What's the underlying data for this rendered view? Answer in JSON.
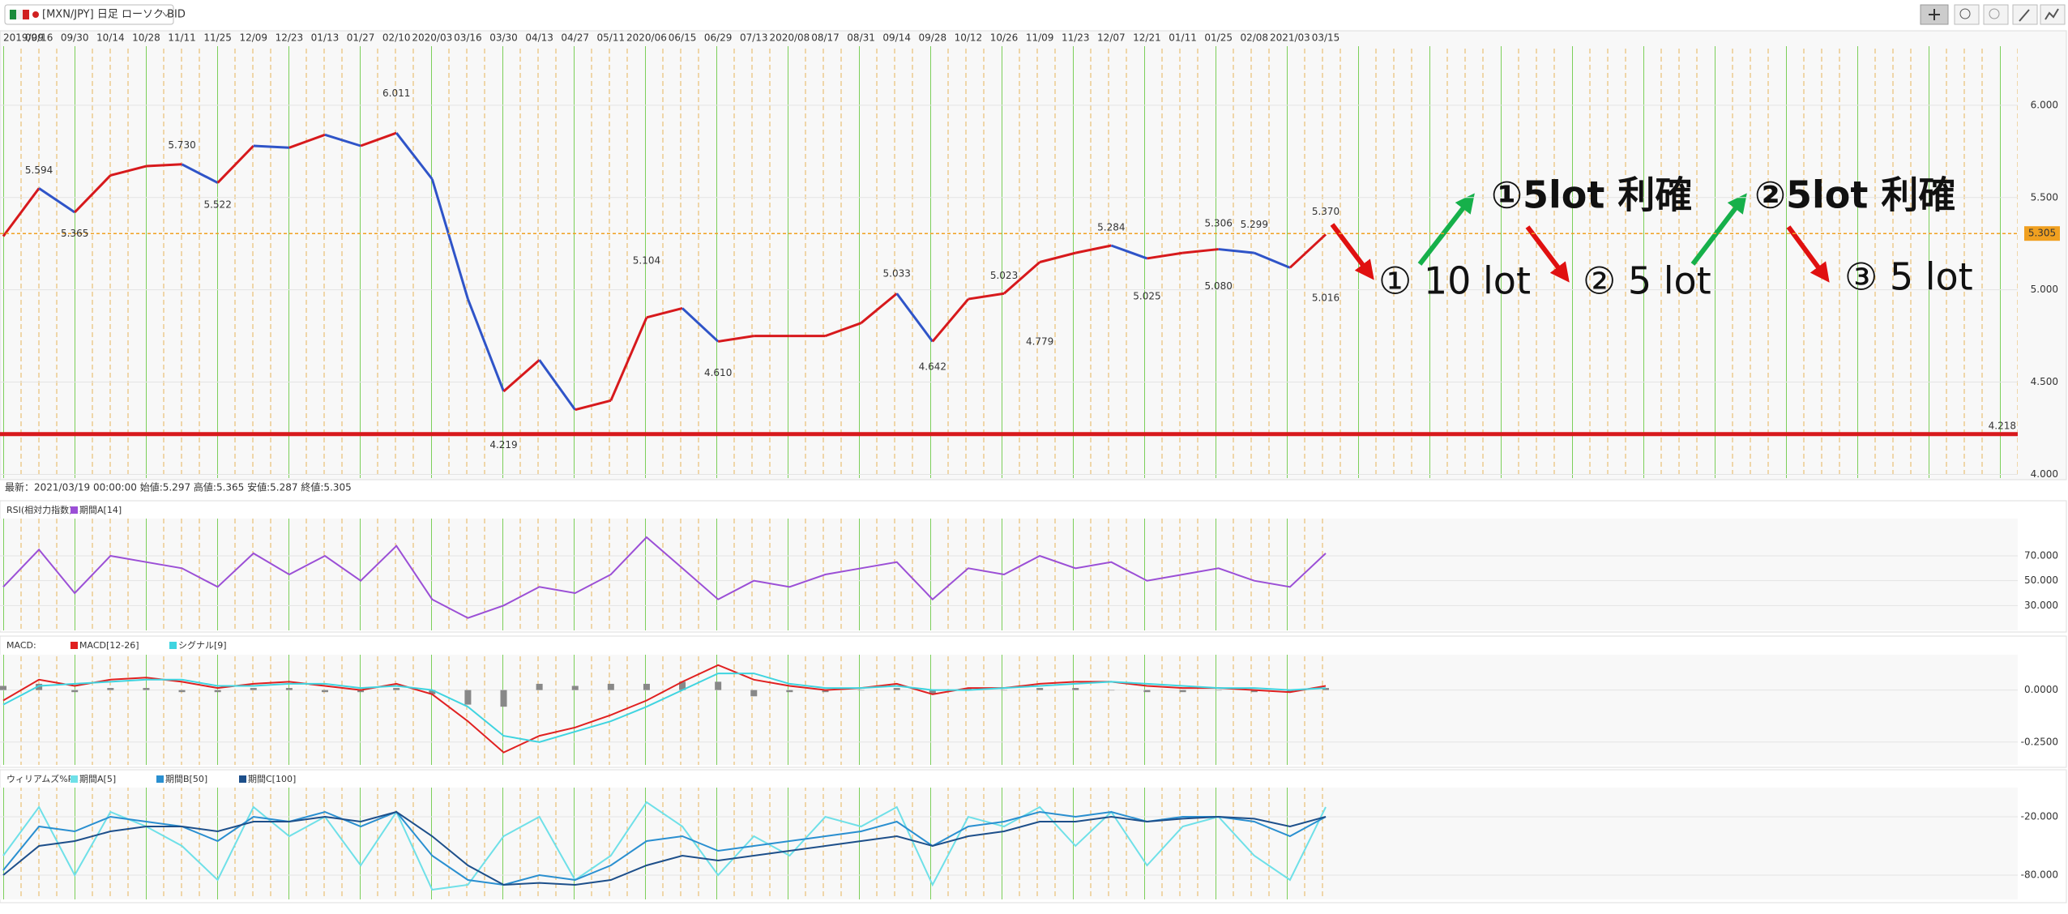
{
  "info": "最新：2021/03/19 00:00:00 始値:5.297 高値:5.365 安値:5.287 終値:5.305",
  "chart_data": [
    {
      "type": "line",
      "title": "[MXN/JPY] 日足 ローソク BID",
      "categories": [
        "2019/09",
        "09/16",
        "09/30",
        "10/14",
        "10/28",
        "11/11",
        "11/25",
        "12/09",
        "12/23",
        "01/13",
        "01/27",
        "02/10",
        "2020/03",
        "03/16",
        "03/30",
        "04/13",
        "04/27",
        "05/11",
        "2020/06",
        "06/15",
        "06/29",
        "07/13",
        "2020/08",
        "08/17",
        "08/31",
        "09/14",
        "09/28",
        "10/12",
        "10/26",
        "11/09",
        "11/23",
        "12/07",
        "12/21",
        "01/11",
        "01/25",
        "02/08",
        "2021/03",
        "03/15"
      ],
      "series": [
        {
          "color": "#2f54c8",
          "up_color": "#d7191c",
          "values": [
            5.29,
            5.55,
            5.42,
            5.62,
            5.67,
            5.68,
            5.58,
            5.78,
            5.77,
            5.84,
            5.78,
            5.85,
            5.6,
            4.95,
            4.45,
            4.62,
            4.35,
            4.4,
            4.85,
            4.9,
            4.72,
            4.75,
            4.75,
            4.75,
            4.82,
            4.98,
            4.72,
            4.95,
            4.98,
            5.15,
            5.2,
            5.24,
            5.17,
            5.2,
            5.22,
            5.2,
            5.12,
            5.3
          ]
        }
      ],
      "ylim": [
        3.98,
        6.32
      ],
      "yticks": [
        {
          "value": 4,
          "label": "4.000"
        },
        {
          "value": 4.5,
          "label": "4.500"
        },
        {
          "value": 5,
          "label": "5.000"
        },
        {
          "value": 5.5,
          "label": "5.500"
        },
        {
          "value": 6,
          "label": "6.000"
        }
      ],
      "extremes": [
        {
          "x": "09/16",
          "kind": "high",
          "value": 5.594,
          "label": "5.594"
        },
        {
          "x": "09/30",
          "kind": "low",
          "value": 5.365,
          "label": "5.365"
        },
        {
          "x": "11/11",
          "kind": "high",
          "value": 5.73,
          "label": "5.730"
        },
        {
          "x": "11/25",
          "kind": "low",
          "value": 5.522,
          "label": "5.522"
        },
        {
          "x": "02/10",
          "kind": "high",
          "value": 6.011,
          "label": "6.011"
        },
        {
          "x": "03/30",
          "kind": "low",
          "value": 4.219,
          "label": "4.219"
        },
        {
          "x": "2020/06",
          "kind": "high",
          "value": 5.104,
          "label": "5.104"
        },
        {
          "x": "06/29",
          "kind": "low",
          "value": 4.61,
          "label": "4.610"
        },
        {
          "x": "09/14",
          "kind": "high",
          "value": 5.033,
          "label": "5.033"
        },
        {
          "x": "09/28",
          "kind": "low",
          "value": 4.642,
          "label": "4.642"
        },
        {
          "x": "10/26",
          "kind": "high",
          "value": 5.023,
          "label": "5.023"
        },
        {
          "x": "11/09",
          "kind": "low",
          "value": 4.779,
          "label": "4.779"
        },
        {
          "x": "12/07",
          "kind": "high",
          "value": 5.284,
          "label": "5.284"
        },
        {
          "x": "12/21",
          "kind": "low",
          "value": 5.025,
          "label": "5.025"
        },
        {
          "x": "01/25",
          "kind": "high",
          "value": 5.306,
          "label": "5.306"
        },
        {
          "x": "01/25",
          "kind": "low",
          "value": 5.08,
          "label": "5.080"
        },
        {
          "x": "02/08",
          "kind": "high",
          "value": 5.299,
          "label": "5.299"
        },
        {
          "x": "03/15",
          "kind": "low",
          "value": 5.016,
          "label": "5.016"
        },
        {
          "x": "03/15",
          "kind": "high",
          "value": 5.37,
          "label": "5.370"
        }
      ],
      "hline": {
        "value": 4.218,
        "label": "4.218",
        "color": "#d7191c"
      },
      "current": {
        "value": 5.305,
        "label": "5.305",
        "color": "#f0a020"
      },
      "notes": [
        "①5lot 利確",
        "②5lot 利確",
        "① 10 lot",
        "② 5 lot",
        "③ 5 lot"
      ]
    },
    {
      "type": "line",
      "title": "RSI(相対力指数):",
      "series": [
        {
          "name": "期間A[14]",
          "color": "#9b4fd6",
          "values": [
            45,
            75,
            40,
            70,
            65,
            60,
            45,
            72,
            55,
            70,
            50,
            78,
            35,
            20,
            30,
            45,
            40,
            55,
            85,
            60,
            35,
            50,
            45,
            55,
            60,
            65,
            35,
            60,
            55,
            70,
            60,
            65,
            50,
            55,
            60,
            50,
            45,
            72
          ]
        }
      ],
      "ylim": [
        10,
        100
      ],
      "yticks": [
        {
          "value": 30,
          "label": "30.000"
        },
        {
          "value": 50,
          "label": "50.000"
        },
        {
          "value": 70,
          "label": "70.000"
        }
      ]
    },
    {
      "type": "line",
      "title": "MACD:",
      "series": [
        {
          "name": "MACD[12-26]",
          "color": "#e02020",
          "values": [
            -0.05,
            0.05,
            0.02,
            0.05,
            0.06,
            0.04,
            0.01,
            0.03,
            0.04,
            0.02,
            0.0,
            0.03,
            -0.02,
            -0.15,
            -0.3,
            -0.22,
            -0.18,
            -0.12,
            -0.05,
            0.04,
            0.12,
            0.05,
            0.02,
            0.0,
            0.01,
            0.03,
            -0.02,
            0.01,
            0.01,
            0.03,
            0.04,
            0.04,
            0.02,
            0.01,
            0.01,
            0.0,
            -0.01,
            0.02
          ]
        },
        {
          "name": "シグナル[9]",
          "color": "#3fd4e0",
          "values": [
            -0.07,
            0.02,
            0.03,
            0.04,
            0.05,
            0.05,
            0.02,
            0.02,
            0.03,
            0.03,
            0.01,
            0.02,
            0.0,
            -0.08,
            -0.22,
            -0.25,
            -0.2,
            -0.15,
            -0.08,
            0.0,
            0.08,
            0.08,
            0.03,
            0.01,
            0.01,
            0.02,
            0.0,
            0.0,
            0.01,
            0.02,
            0.03,
            0.04,
            0.03,
            0.02,
            0.01,
            0.01,
            0.0,
            0.01
          ]
        }
      ],
      "histogram": {
        "color": "#888888",
        "values": [
          0.02,
          0.03,
          -0.01,
          0.01,
          0.01,
          -0.01,
          -0.01,
          0.01,
          0.01,
          -0.01,
          -0.01,
          0.01,
          -0.02,
          -0.07,
          -0.08,
          0.03,
          0.02,
          0.03,
          0.03,
          0.04,
          0.04,
          -0.03,
          -0.01,
          -0.01,
          0.0,
          0.01,
          -0.02,
          0.01,
          0.0,
          0.01,
          0.01,
          0.0,
          -0.01,
          -0.01,
          0.0,
          -0.01,
          -0.01,
          0.01
        ]
      },
      "ylim": [
        -0.36,
        0.17
      ],
      "yticks": [
        {
          "value": -0.25,
          "label": "-0.2500"
        },
        {
          "value": 0,
          "label": "0.0000"
        }
      ]
    },
    {
      "type": "line",
      "title": "ウィリアムズ%R:",
      "series": [
        {
          "name": "期間A[5]",
          "color": "#6fe0e8",
          "values": [
            -60,
            -10,
            -80,
            -15,
            -30,
            -50,
            -85,
            -10,
            -40,
            -20,
            -70,
            -15,
            -95,
            -90,
            -40,
            -20,
            -85,
            -60,
            -5,
            -30,
            -80,
            -40,
            -60,
            -20,
            -30,
            -10,
            -90,
            -20,
            -30,
            -10,
            -50,
            -15,
            -70,
            -30,
            -20,
            -60,
            -85,
            -10
          ]
        },
        {
          "name": "期間B[50]",
          "color": "#2a8fd0",
          "values": [
            -75,
            -30,
            -35,
            -20,
            -25,
            -30,
            -45,
            -20,
            -25,
            -15,
            -30,
            -15,
            -60,
            -85,
            -90,
            -80,
            -85,
            -70,
            -45,
            -40,
            -55,
            -50,
            -45,
            -40,
            -35,
            -25,
            -50,
            -30,
            -25,
            -15,
            -20,
            -15,
            -25,
            -20,
            -20,
            -25,
            -40,
            -20
          ]
        },
        {
          "name": "期間C[100]",
          "color": "#1d4f8a",
          "values": [
            -80,
            -50,
            -45,
            -35,
            -30,
            -30,
            -35,
            -25,
            -25,
            -20,
            -25,
            -15,
            -40,
            -70,
            -90,
            -88,
            -90,
            -85,
            -70,
            -60,
            -65,
            -60,
            -55,
            -50,
            -45,
            -40,
            -50,
            -40,
            -35,
            -25,
            -25,
            -20,
            -25,
            -22,
            -20,
            -22,
            -30,
            -20
          ]
        }
      ],
      "ylim": [
        -105,
        10
      ],
      "yticks": [
        {
          "value": -80,
          "label": "-80.000"
        },
        {
          "value": -20,
          "label": "-20.000"
        }
      ]
    }
  ]
}
